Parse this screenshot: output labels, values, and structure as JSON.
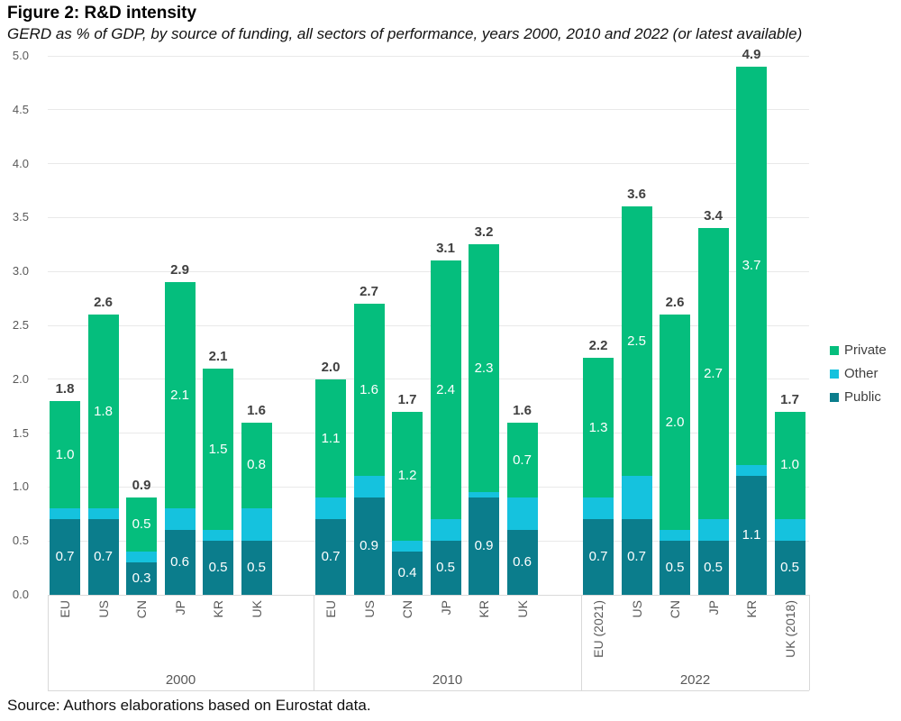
{
  "chart_data": {
    "type": "bar",
    "variant": "stacked-column-grouped",
    "title": "Figure 2: R&D intensity",
    "subtitle": "GERD as % of GDP, by source of funding, all sectors of performance, years 2000, 2010 and 2022 (or latest available)",
    "source": "Source: Authors elaborations based on Eurostat data.",
    "ylim": [
      0,
      5
    ],
    "ytick_step": 0.5,
    "ytick_labels": [
      "0.0",
      "0.5",
      "1.0",
      "1.5",
      "2.0",
      "2.5",
      "3.0",
      "3.5",
      "4.0",
      "4.5",
      "5.0"
    ],
    "grid": true,
    "legend_position": "right",
    "legend": [
      {
        "key": "private",
        "label": "Private",
        "color": "#05be7d"
      },
      {
        "key": "other",
        "label": "Other",
        "color": "#15c2de"
      },
      {
        "key": "public",
        "label": "Public",
        "color": "#0b7d8c"
      }
    ],
    "series_order_bottom_to_top": [
      "public",
      "other",
      "private"
    ],
    "groups": [
      {
        "year_label": "2000",
        "bars": [
          {
            "label": "EU",
            "public": 0.7,
            "other": 0.1,
            "private": 1.0,
            "total": 1.8,
            "public_label": "0.7",
            "private_label": "1.0",
            "total_label": "1.8"
          },
          {
            "label": "US",
            "public": 0.7,
            "other": 0.1,
            "private": 1.8,
            "total": 2.6,
            "public_label": "0.7",
            "private_label": "1.8",
            "total_label": "2.6"
          },
          {
            "label": "CN",
            "public": 0.3,
            "other": 0.1,
            "private": 0.5,
            "total": 0.9,
            "public_label": "0.3",
            "private_label": "0.5",
            "total_label": "0.9"
          },
          {
            "label": "JP",
            "public": 0.6,
            "other": 0.2,
            "private": 2.1,
            "total": 2.9,
            "public_label": "0.6",
            "private_label": "2.1",
            "total_label": "2.9"
          },
          {
            "label": "KR",
            "public": 0.5,
            "other": 0.1,
            "private": 1.5,
            "total": 2.1,
            "public_label": "0.5",
            "private_label": "1.5",
            "total_label": "2.1"
          },
          {
            "label": "UK",
            "public": 0.5,
            "other": 0.3,
            "private": 0.8,
            "total": 1.6,
            "public_label": "0.5",
            "private_label": "0.8",
            "total_label": "1.6"
          }
        ]
      },
      {
        "year_label": "2010",
        "bars": [
          {
            "label": "EU",
            "public": 0.7,
            "other": 0.2,
            "private": 1.1,
            "total": 2.0,
            "public_label": "0.7",
            "private_label": "1.1",
            "total_label": "2.0"
          },
          {
            "label": "US",
            "public": 0.9,
            "other": 0.2,
            "private": 1.6,
            "total": 2.7,
            "public_label": "0.9",
            "private_label": "1.6",
            "total_label": "2.7"
          },
          {
            "label": "CN",
            "public": 0.4,
            "other": 0.1,
            "private": 1.2,
            "total": 1.7,
            "public_label": "0.4",
            "private_label": "1.2",
            "total_label": "1.7"
          },
          {
            "label": "JP",
            "public": 0.5,
            "other": 0.2,
            "private": 2.4,
            "total": 3.1,
            "public_label": "0.5",
            "private_label": "2.4",
            "total_label": "3.1"
          },
          {
            "label": "KR",
            "public": 0.9,
            "other": 0.05,
            "private": 2.3,
            "total": 3.2,
            "public_label": "0.9",
            "private_label": "2.3",
            "total_label": "3.2"
          },
          {
            "label": "UK",
            "public": 0.6,
            "other": 0.3,
            "private": 0.7,
            "total": 1.6,
            "public_label": "0.6",
            "private_label": "0.7",
            "total_label": "1.6"
          }
        ]
      },
      {
        "year_label": "2022",
        "bars": [
          {
            "label": "EU (2021)",
            "public": 0.7,
            "other": 0.2,
            "private": 1.3,
            "total": 2.2,
            "public_label": "0.7",
            "private_label": "1.3",
            "total_label": "2.2"
          },
          {
            "label": "US",
            "public": 0.7,
            "other": 0.4,
            "private": 2.5,
            "total": 3.6,
            "public_label": "0.7",
            "private_label": "2.5",
            "total_label": "3.6"
          },
          {
            "label": "CN",
            "public": 0.5,
            "other": 0.1,
            "private": 2.0,
            "total": 2.6,
            "public_label": "0.5",
            "private_label": "2.0",
            "total_label": "2.6"
          },
          {
            "label": "JP",
            "public": 0.5,
            "other": 0.2,
            "private": 2.7,
            "total": 3.4,
            "public_label": "0.5",
            "private_label": "2.7",
            "total_label": "3.4"
          },
          {
            "label": "KR",
            "public": 1.1,
            "other": 0.1,
            "private": 3.7,
            "total": 4.9,
            "public_label": "1.1",
            "private_label": "3.7",
            "total_label": "4.9"
          },
          {
            "label": "UK (2018)",
            "public": 0.5,
            "other": 0.2,
            "private": 1.0,
            "total": 1.7,
            "public_label": "0.5",
            "private_label": "1.0",
            "total_label": "1.7"
          }
        ]
      }
    ]
  }
}
